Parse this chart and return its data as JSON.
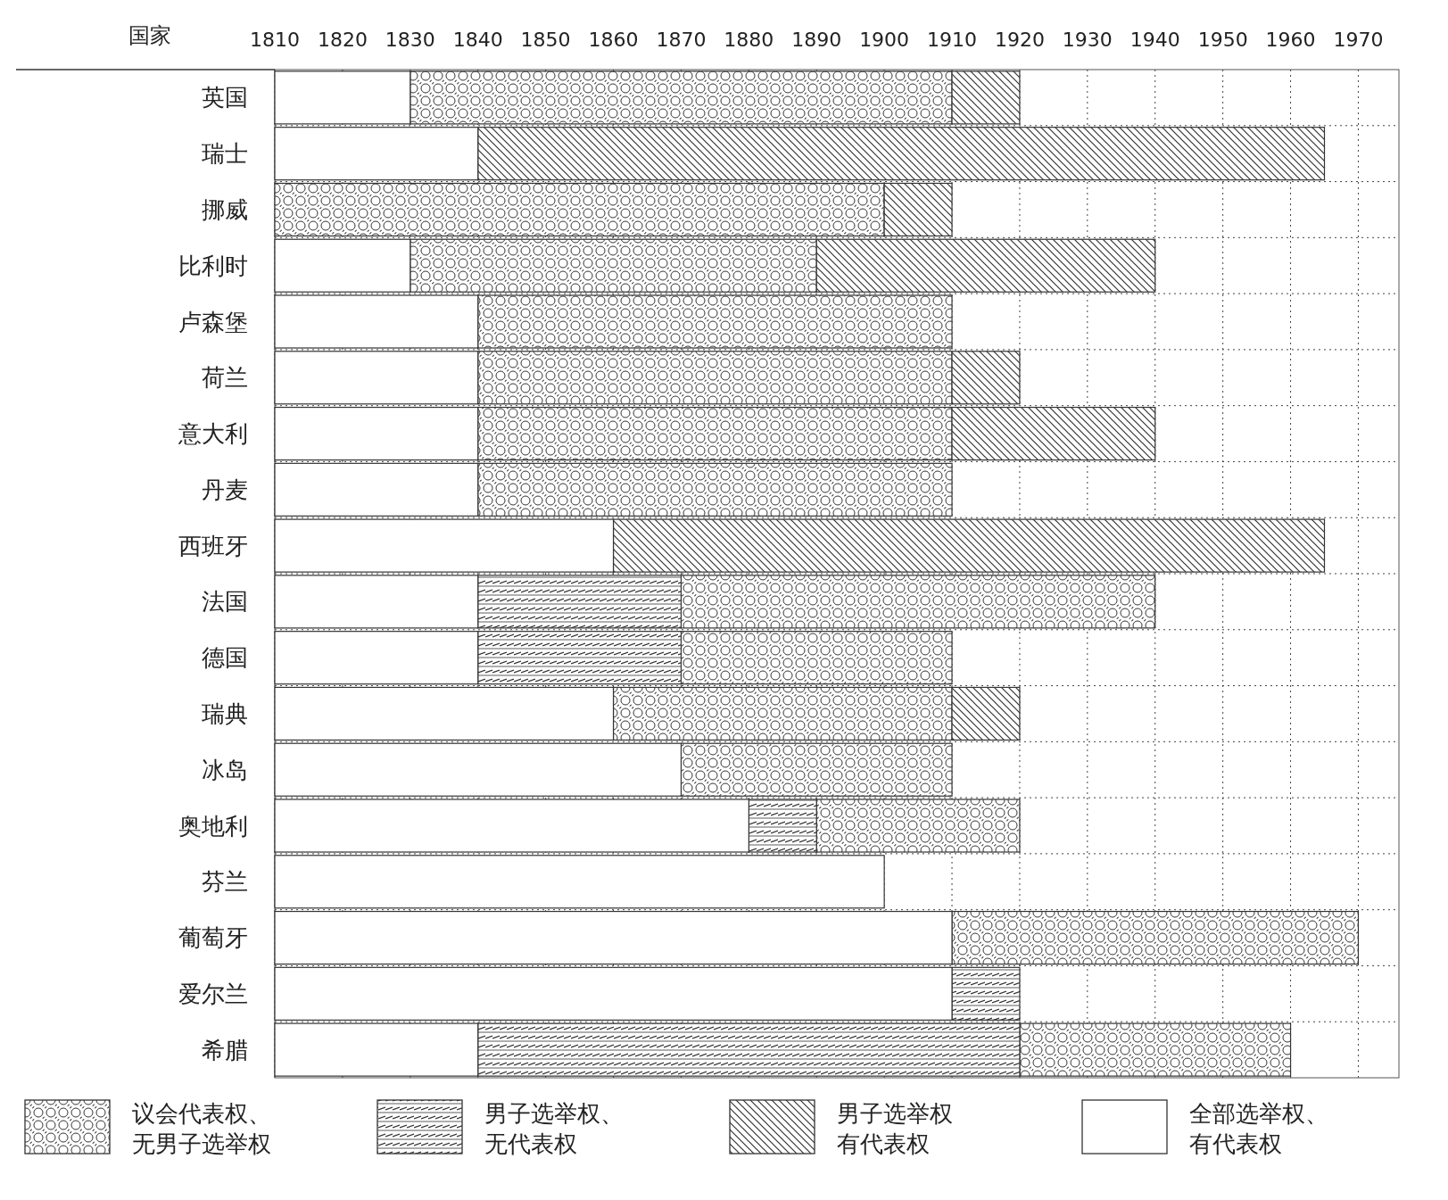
{
  "chart_data": {
    "type": "bar",
    "orientation": "horizontal",
    "ylabel": "国家",
    "categories": [
      "英国",
      "瑞士",
      "挪威",
      "比利时",
      "卢森堡",
      "荷兰",
      "意大利",
      "丹麦",
      "西班牙",
      "法国",
      "德国",
      "瑞典",
      "冰岛",
      "奥地利",
      "芬兰",
      "葡萄牙",
      "爱尔兰",
      "希腊"
    ],
    "series": [
      {
        "name": "议会代表权、无男子选举权",
        "color": "#333333",
        "base": [
          1830,
          null,
          1810,
          1830,
          1840,
          1840,
          1840,
          1840,
          null,
          1870,
          1870,
          1860,
          1870,
          1890,
          null,
          1910,
          null,
          1920
        ],
        "values": [
          80,
          null,
          90,
          60,
          70,
          70,
          70,
          70,
          null,
          70,
          40,
          50,
          40,
          30,
          null,
          60,
          null,
          40
        ]
      },
      {
        "name": "男子选举权、无代表权",
        "color": "#333333",
        "base": [
          null,
          null,
          null,
          null,
          null,
          null,
          null,
          null,
          null,
          1840,
          1840,
          null,
          null,
          1880,
          null,
          null,
          1910,
          1840
        ],
        "values": [
          null,
          null,
          null,
          null,
          null,
          null,
          null,
          null,
          null,
          30,
          30,
          null,
          null,
          10,
          null,
          null,
          10,
          80
        ]
      },
      {
        "name": "男子选举权有代表权",
        "color": "#333333",
        "base": [
          1910,
          1840,
          1900,
          1890,
          null,
          1910,
          1910,
          null,
          1860,
          null,
          null,
          1910,
          null,
          null,
          null,
          null,
          null,
          null
        ],
        "values": [
          10,
          125,
          10,
          50,
          null,
          10,
          30,
          null,
          105,
          null,
          null,
          10,
          null,
          null,
          null,
          null,
          null,
          null
        ]
      },
      {
        "name": "全部选举权、有代表权",
        "color": "#333333",
        "base": [
          1810,
          1810,
          null,
          1810,
          1810,
          1810,
          1810,
          1810,
          1810,
          1810,
          1810,
          1810,
          1810,
          1810,
          1810,
          1810,
          1810,
          1810
        ],
        "values": [
          20,
          30,
          null,
          20,
          30,
          30,
          30,
          30,
          50,
          30,
          30,
          50,
          60,
          70,
          90,
          100,
          100,
          30
        ]
      }
    ],
    "xlim": [
      1810,
      1976
    ],
    "xticks": [
      1810,
      1820,
      1830,
      1840,
      1850,
      1860,
      1870,
      1880,
      1890,
      1900,
      1910,
      1920,
      1930,
      1940,
      1950,
      1960,
      1970
    ],
    "grid": true,
    "legend": "bottom"
  }
}
